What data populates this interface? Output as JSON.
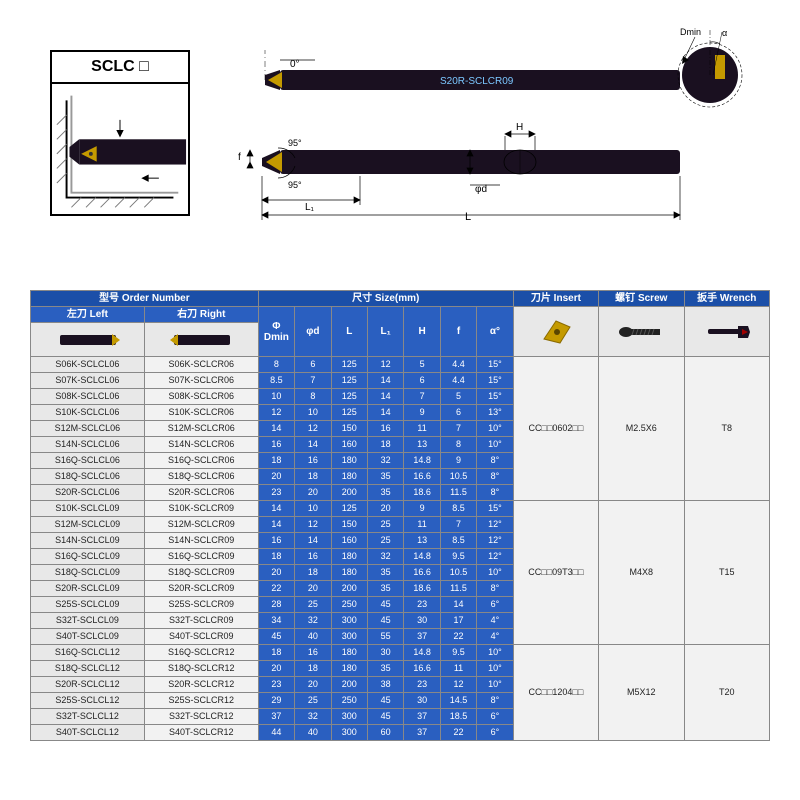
{
  "title_box": {
    "label": "SCLC □"
  },
  "diagram_labels": {
    "angle0": "0°",
    "angle95a": "95°",
    "angle95b": "95°",
    "L": "L",
    "L1": "L₁",
    "phi_d": "φd",
    "H": "H",
    "f": "f",
    "Dmin": "Dmin",
    "alpha": "α",
    "tool_marking": "S20R-SCLCR09"
  },
  "headers": {
    "order_number": "型号 Order Number",
    "left": "左刀 Left",
    "right": "右刀 Right",
    "size": "尺寸 Size(mm)",
    "phi_dmin": "Φ\nDmin",
    "phi_d": "φd",
    "L": "L",
    "L1": "L₁",
    "H": "H",
    "f": "f",
    "alpha": "α°",
    "insert": "刀片\nInsert",
    "screw": "螺钉\nScrew",
    "wrench": "扳手\nWrench"
  },
  "groups": [
    {
      "insert": "CC□□0602□□",
      "screw": "M2.5X6",
      "wrench": "T8",
      "rows": [
        {
          "l": "S06K-SCLCL06",
          "r": "S06K-SCLCR06",
          "s": [
            "8",
            "6",
            "125",
            "12",
            "5",
            "4.4",
            "15°"
          ]
        },
        {
          "l": "S07K-SCLCL06",
          "r": "S07K-SCLCR06",
          "s": [
            "8.5",
            "7",
            "125",
            "14",
            "6",
            "4.4",
            "15°"
          ]
        },
        {
          "l": "S08K-SCLCL06",
          "r": "S08K-SCLCR06",
          "s": [
            "10",
            "8",
            "125",
            "14",
            "7",
            "5",
            "15°"
          ]
        },
        {
          "l": "S10K-SCLCL06",
          "r": "S10K-SCLCR06",
          "s": [
            "12",
            "10",
            "125",
            "14",
            "9",
            "6",
            "13°"
          ]
        },
        {
          "l": "S12M-SCLCL06",
          "r": "S12M-SCLCR06",
          "s": [
            "14",
            "12",
            "150",
            "16",
            "11",
            "7",
            "10°"
          ]
        },
        {
          "l": "S14N-SCLCL06",
          "r": "S14N-SCLCR06",
          "s": [
            "16",
            "14",
            "160",
            "18",
            "13",
            "8",
            "10°"
          ]
        },
        {
          "l": "S16Q-SCLCL06",
          "r": "S16Q-SCLCR06",
          "s": [
            "18",
            "16",
            "180",
            "32",
            "14.8",
            "9",
            "8°"
          ]
        },
        {
          "l": "S18Q-SCLCL06",
          "r": "S18Q-SCLCR06",
          "s": [
            "20",
            "18",
            "180",
            "35",
            "16.6",
            "10.5",
            "8°"
          ]
        },
        {
          "l": "S20R-SCLCL06",
          "r": "S20R-SCLCR06",
          "s": [
            "23",
            "20",
            "200",
            "35",
            "18.6",
            "11.5",
            "8°"
          ]
        }
      ]
    },
    {
      "insert": "CC□□09T3□□",
      "screw": "M4X8",
      "wrench": "T15",
      "rows": [
        {
          "l": "S10K-SCLCL09",
          "r": "S10K-SCLCR09",
          "s": [
            "14",
            "10",
            "125",
            "20",
            "9",
            "8.5",
            "15°"
          ]
        },
        {
          "l": "S12M-SCLCL09",
          "r": "S12M-SCLCR09",
          "s": [
            "14",
            "12",
            "150",
            "25",
            "11",
            "7",
            "12°"
          ]
        },
        {
          "l": "S14N-SCLCL09",
          "r": "S14N-SCLCR09",
          "s": [
            "16",
            "14",
            "160",
            "25",
            "13",
            "8.5",
            "12°"
          ]
        },
        {
          "l": "S16Q-SCLCL09",
          "r": "S16Q-SCLCR09",
          "s": [
            "18",
            "16",
            "180",
            "32",
            "14.8",
            "9.5",
            "12°"
          ]
        },
        {
          "l": "S18Q-SCLCL09",
          "r": "S18Q-SCLCR09",
          "s": [
            "20",
            "18",
            "180",
            "35",
            "16.6",
            "10.5",
            "10°"
          ]
        },
        {
          "l": "S20R-SCLCL09",
          "r": "S20R-SCLCR09",
          "s": [
            "22",
            "20",
            "200",
            "35",
            "18.6",
            "11.5",
            "8°"
          ]
        },
        {
          "l": "S25S-SCLCL09",
          "r": "S25S-SCLCR09",
          "s": [
            "28",
            "25",
            "250",
            "45",
            "23",
            "14",
            "6°"
          ]
        },
        {
          "l": "S32T-SCLCL09",
          "r": "S32T-SCLCR09",
          "s": [
            "34",
            "32",
            "300",
            "45",
            "30",
            "17",
            "4°"
          ]
        },
        {
          "l": "S40T-SCLCL09",
          "r": "S40T-SCLCR09",
          "s": [
            "45",
            "40",
            "300",
            "55",
            "37",
            "22",
            "4°"
          ]
        }
      ]
    },
    {
      "insert": "CC□□1204□□",
      "screw": "M5X12",
      "wrench": "T20",
      "rows": [
        {
          "l": "S16Q-SCLCL12",
          "r": "S16Q-SCLCR12",
          "s": [
            "18",
            "16",
            "180",
            "30",
            "14.8",
            "9.5",
            "10°"
          ]
        },
        {
          "l": "S18Q-SCLCL12",
          "r": "S18Q-SCLCR12",
          "s": [
            "20",
            "18",
            "180",
            "35",
            "16.6",
            "11",
            "10°"
          ]
        },
        {
          "l": "S20R-SCLCL12",
          "r": "S20R-SCLCR12",
          "s": [
            "23",
            "20",
            "200",
            "38",
            "23",
            "12",
            "10°"
          ]
        },
        {
          "l": "S25S-SCLCL12",
          "r": "S25S-SCLCR12",
          "s": [
            "29",
            "25",
            "250",
            "45",
            "30",
            "14.5",
            "8°"
          ]
        },
        {
          "l": "S32T-SCLCL12",
          "r": "S32T-SCLCR12",
          "s": [
            "37",
            "32",
            "300",
            "45",
            "37",
            "18.5",
            "6°"
          ]
        },
        {
          "l": "S40T-SCLCL12",
          "r": "S40T-SCLCR12",
          "s": [
            "44",
            "40",
            "300",
            "60",
            "37",
            "22",
            "6°"
          ]
        }
      ]
    }
  ],
  "colors": {
    "header_blue": "#1b4fa8",
    "size_blue": "#2a5fc0",
    "row_grey_l": "#e8e8e8",
    "row_grey_r": "#f2f2f2",
    "tool_body": "#1a1020",
    "insert_gold": "#c49a00"
  }
}
